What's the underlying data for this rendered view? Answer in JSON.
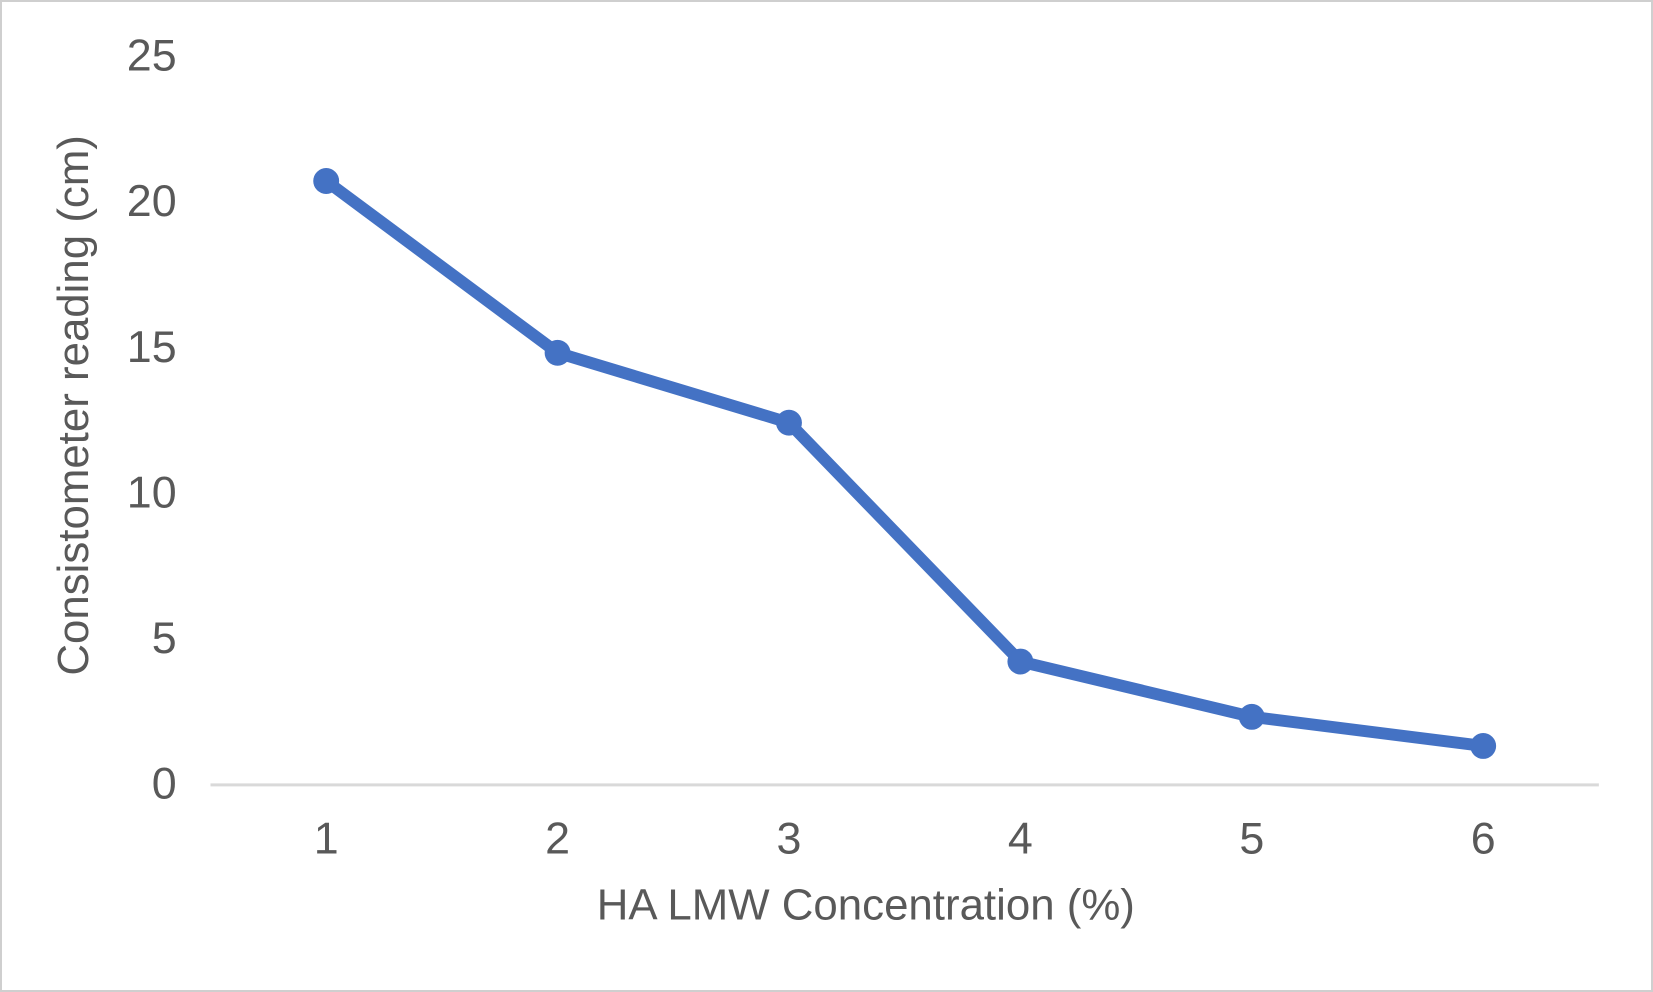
{
  "chart_data": {
    "type": "line",
    "x": [
      1,
      2,
      3,
      4,
      5,
      6
    ],
    "series": [
      {
        "name": "Consistometer reading",
        "values": [
          20.7,
          14.8,
          12.4,
          4.2,
          2.3,
          1.3
        ]
      }
    ],
    "title": "",
    "xlabel": "HA LMW Concentration (%)",
    "ylabel": "Consistometer reading (cm)",
    "xticks": [
      "1",
      "2",
      "3",
      "4",
      "5",
      "6"
    ],
    "yticks": [
      0,
      5,
      10,
      15,
      20,
      25
    ],
    "ylim": [
      0,
      25
    ],
    "grid": false,
    "legend": false,
    "marker": "circle",
    "colors": {
      "line": "#4472C4",
      "marker": "#4472C4",
      "axis_line": "#D9D9D9",
      "text": "#595959"
    }
  }
}
